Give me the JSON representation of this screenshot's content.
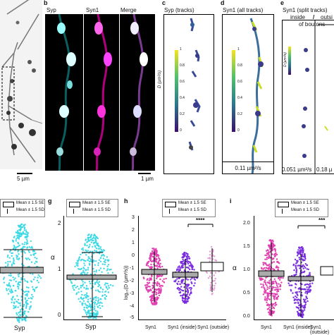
{
  "top": {
    "panel_a": {
      "scalebar": "5 µm"
    },
    "panel_b": {
      "letter": "b",
      "channels": [
        "Syp",
        "Syn1",
        "Merge"
      ],
      "scalebar": "1 µm"
    },
    "panel_c": {
      "letter": "c",
      "title": "Syp (tracks)",
      "cbar_label": "D (µm²/s)",
      "cbar_ticks": [
        "1",
        "0.8",
        "0.6",
        "0.4",
        "0.2",
        "0"
      ]
    },
    "panel_d": {
      "letter": "d",
      "title": "Syn1 (all tracks)",
      "cbar_label": "D (µm²/s)",
      "cbar_ticks": [
        "1",
        "0.8",
        "0.6",
        "0.4",
        "0.2",
        "0"
      ],
      "footer": "0.11 µm²/s"
    },
    "panel_e": {
      "letter": "e",
      "title": "Syn1 (split tracks)",
      "header_left": "inside",
      "header_slash": "/",
      "header_right": "outsi",
      "header_sub": "of boutons",
      "cbar_label": "D (µm²/s)",
      "footer_left": "0.051 µm²/s",
      "footer_right": "0.18 µ"
    }
  },
  "bottom": {
    "legend": {
      "box": "Mean ± 1.5 SE",
      "whisker": "Mean ± 1.5 SD"
    },
    "panel_f": {
      "xcat": "Syp"
    },
    "panel_g": {
      "letter": "g",
      "ylabel": "α",
      "xcat": "Syp",
      "yticks": [
        "0",
        "1",
        "2"
      ]
    },
    "panel_h": {
      "letter": "h",
      "ylabel": "log₁₀(D (µm²/s))",
      "yticks": [
        "3",
        "2",
        "1",
        "0",
        "-1",
        "-2",
        "-3",
        "-4",
        "-5"
      ],
      "xcats": [
        "Syn1",
        "Syn1 (inside)",
        "Syn1 (outside)"
      ],
      "sig": "****"
    },
    "panel_i": {
      "letter": "i",
      "ylabel": "α",
      "yticks": [
        "2.0",
        "1.5",
        "1.0",
        "0.5",
        "0.0"
      ],
      "xcats": [
        "Syn1",
        "Syn1 (inside)",
        "Syn1 (outside)"
      ],
      "sig": "***"
    }
  },
  "chart_data": [
    {
      "type": "scatter",
      "panel": "f",
      "categories": [
        "Syp"
      ],
      "mean": [
        0.85
      ],
      "sd_range": [
        [
          0.4,
          1.35
        ]
      ]
    },
    {
      "type": "scatter",
      "panel": "g",
      "categories": [
        "Syp"
      ],
      "ylim": [
        0,
        2.2
      ],
      "mean": [
        0.63
      ],
      "sd_range": [
        [
          0.03,
          1.28
        ]
      ]
    },
    {
      "type": "scatter",
      "panel": "h",
      "categories": [
        "Syn1",
        "Syn1 (inside)",
        "Syn1 (outside)"
      ],
      "ylim": [
        -5,
        3
      ],
      "mean": [
        -1.1,
        -1.3,
        -0.7
      ],
      "sd_range": [
        [
          -3.2,
          1.0
        ],
        [
          -3.0,
          0.4
        ],
        [
          -2.5,
          1.0
        ]
      ]
    },
    {
      "type": "scatter",
      "panel": "i",
      "categories": [
        "Syn1",
        "Syn1 (inside)",
        "Syn1 (outside)"
      ],
      "ylim": [
        -0.1,
        2.1
      ],
      "mean": [
        0.76,
        0.66,
        0.85
      ],
      "sd_range": [
        [
          0.05,
          1.5
        ],
        [
          0.02,
          1.32
        ],
        [
          0.1,
          1.6
        ]
      ]
    }
  ]
}
